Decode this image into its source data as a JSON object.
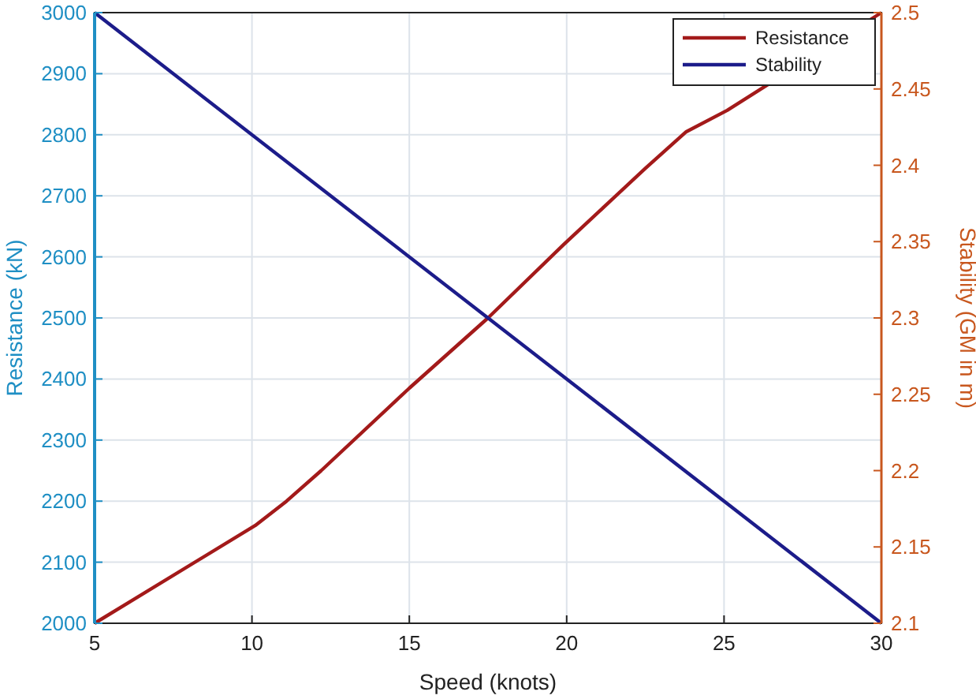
{
  "chart_data": {
    "type": "line",
    "xlabel": "Speed (knots)",
    "ylabel": "Resistance (kN)",
    "y2label": "Stability (GM in m)",
    "xlim": [
      5,
      30
    ],
    "xticks": [
      5,
      10,
      15,
      20,
      25,
      30
    ],
    "ylim": [
      2000,
      3000
    ],
    "yticks": [
      2000,
      2100,
      2200,
      2300,
      2400,
      2500,
      2600,
      2700,
      2800,
      2900,
      3000
    ],
    "y2lim": [
      2.1,
      2.5
    ],
    "y2ticks": [
      2.1,
      2.15,
      2.2,
      2.25,
      2.3,
      2.35,
      2.4,
      2.45,
      2.5
    ],
    "grid": true,
    "legend": "top right",
    "line_style": "solid",
    "marker": "none",
    "series": [
      {
        "name": "Resistance",
        "color": "#a31a1a",
        "x": [
          5,
          10.1,
          11.1,
          12.2,
          15,
          17.5,
          19.9,
          22.5,
          23.8,
          25.1,
          30
        ],
        "values": [
          2000,
          2160,
          2200,
          2250,
          2385,
          2500,
          2620,
          2745,
          2805,
          2840,
          3000
        ]
      },
      {
        "name": "Stability",
        "color": "#1c1c8a",
        "axis": "y2",
        "x": [
          5,
          30
        ],
        "values": [
          2.5,
          2.1
        ]
      }
    ]
  }
}
